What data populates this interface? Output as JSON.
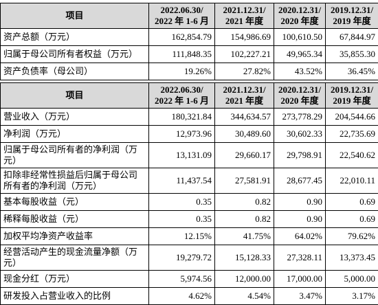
{
  "sections": [
    {
      "header": [
        "项目",
        "2022.06.30/\n2022 年 1-6 月",
        "2021.12.31/\n2021 年度",
        "2020.12.31/\n2020 年度",
        "2019.12.31/\n2019 年度"
      ],
      "rows": [
        [
          "资产总额（万元）",
          "162,854.79",
          "154,986.69",
          "100,610.50",
          "67,844.97"
        ],
        [
          "归属于母公司所有者权益（万元）",
          "111,848.35",
          "102,227.21",
          "49,965.34",
          "35,855.30"
        ],
        [
          "资产负债率（母公司）",
          "19.26%",
          "27.82%",
          "43.52%",
          "36.45%"
        ]
      ]
    },
    {
      "header": [
        "项目",
        "2022.06.30/\n2022 年 1-6 月",
        "2021.12.31/\n2021 年度",
        "2020.12.31/\n2020 年度",
        "2019.12.31/\n2019 年度"
      ],
      "rows": [
        [
          "营业收入（万元）",
          "180,321.84",
          "344,634.57",
          "273,778.29",
          "204,544.66"
        ],
        [
          "净利润（万元）",
          "12,973.96",
          "30,489.60",
          "30,602.33",
          "22,735.69"
        ],
        [
          "归属于母公司所有者的净利润（万元）",
          "13,131.09",
          "29,660.17",
          "29,798.91",
          "22,540.62"
        ],
        [
          "扣除非经常性损益后归属于母公司所有者的净利润（万元）",
          "11,437.54",
          "27,581.91",
          "28,677.45",
          "22,010.11"
        ],
        [
          "基本每股收益（元）",
          "0.35",
          "0.82",
          "0.90",
          "0.69"
        ],
        [
          "稀释每股收益（元）",
          "0.35",
          "0.82",
          "0.90",
          "0.69"
        ],
        [
          "加权平均净资产收益率",
          "12.15%",
          "41.75%",
          "64.02%",
          "79.62%"
        ],
        [
          "经营活动产生的现金流量净额（万元）",
          "19,279.72",
          "15,128.33",
          "27,328.11",
          "13,373.45"
        ],
        [
          "现金分红（万元）",
          "5,974.56",
          "12,000.00",
          "17,000.00",
          "5,000.00"
        ],
        [
          "研发投入占营业收入的比例",
          "4.62%",
          "4.54%",
          "3.47%",
          "3.17%"
        ]
      ]
    }
  ]
}
